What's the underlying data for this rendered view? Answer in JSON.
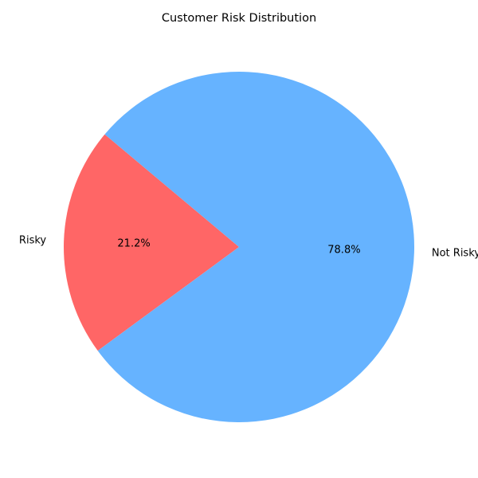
{
  "chart_data": {
    "type": "pie",
    "title": "Customer Risk Distribution",
    "slices": [
      {
        "label": "Risky",
        "value": 21.2,
        "pct_label": "21.2%",
        "color": "#ff6666"
      },
      {
        "label": "Not Risky",
        "value": 78.8,
        "pct_label": "78.8%",
        "color": "#66b3ff"
      }
    ],
    "start_angle_deg": 140,
    "direction": "counterclockwise",
    "legend": "none"
  }
}
